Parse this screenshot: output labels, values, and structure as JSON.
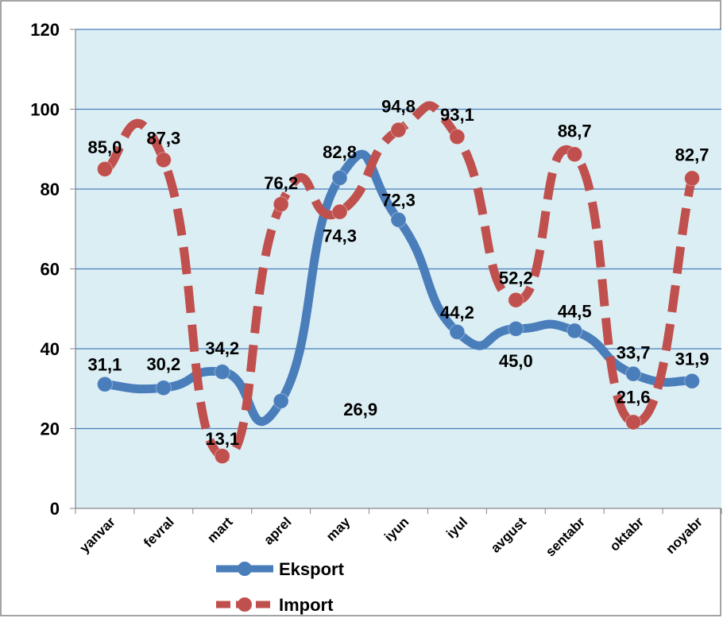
{
  "chart_data": {
    "type": "line",
    "categories": [
      "yanvar",
      "fevral",
      "mart",
      "aprel",
      "may",
      "iyun",
      "iyul",
      "avgust",
      "sentabr",
      "oktabr",
      "noyabr"
    ],
    "ylim": [
      0,
      120
    ],
    "yticks": [
      0,
      20,
      40,
      60,
      80,
      100,
      120
    ],
    "grid": true,
    "legend_position": "bottom",
    "series": [
      {
        "name": "Eksport",
        "values": [
          31.1,
          30.2,
          34.2,
          26.9,
          82.8,
          72.3,
          44.2,
          45.0,
          44.5,
          33.7,
          31.9
        ],
        "labels": [
          "31,1",
          "30,2",
          "34,2",
          "26,9",
          "82,8",
          "72,3",
          "44,2",
          "45,0",
          "44,5",
          "33,7",
          "31,9"
        ],
        "color": "#4a7ebb",
        "style": "solid"
      },
      {
        "name": "Import",
        "values": [
          85.0,
          87.3,
          13.1,
          76.2,
          74.3,
          94.8,
          93.1,
          52.2,
          88.7,
          21.6,
          82.7
        ],
        "labels": [
          "85,0",
          "87,3",
          "13,1",
          "76,2",
          "74,3",
          "94,8",
          "93,1",
          "52,2",
          "88,7",
          "21,6",
          "82,7"
        ],
        "color": "#c0504d",
        "style": "dashed"
      }
    ]
  },
  "colors": {
    "plot_background": "#dbeef4",
    "gridline": "#4a7ebb",
    "axis": "#868686"
  }
}
